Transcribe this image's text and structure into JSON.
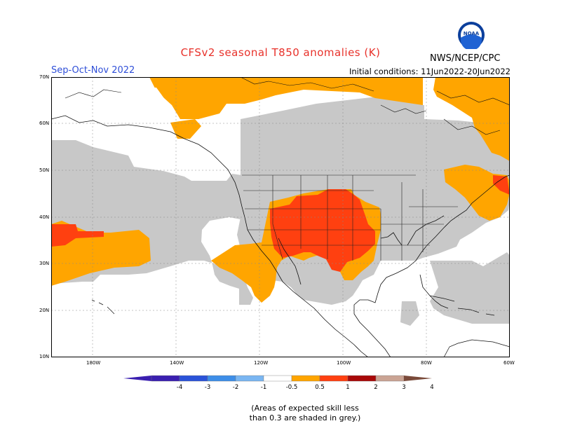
{
  "header": {
    "title": "CFSv2 seasonal T850 anomalies (K)",
    "season": "Sep-Oct-Nov 2022",
    "initial_conditions": "Initial conditions: 11Jun2022-20Jun2022",
    "agency": "NWS/NCEP/CPC",
    "logo_text": "NOAA"
  },
  "axes": {
    "lat_labels": [
      "70N",
      "60N",
      "50N",
      "40N",
      "30N",
      "20N",
      "10N"
    ],
    "lon_labels": [
      "180W",
      "140W",
      "120W",
      "100W",
      "80W",
      "60W"
    ]
  },
  "legend": {
    "labels": [
      "-4",
      "-3",
      "-2",
      "-1",
      "-0.5",
      "0.5",
      "1",
      "2",
      "3",
      "4"
    ],
    "colors": [
      "#3a1fb0",
      "#2a52d8",
      "#3d8ee8",
      "#7ab6f2",
      "#ffffff",
      "#ffa500",
      "#ff4010",
      "#a80808",
      "#caa494",
      "#7a4a3a"
    ]
  },
  "note": {
    "line1": "(Areas of expected skill less",
    "line2": "than 0.3 are shaded in grey.)"
  },
  "map_colors": {
    "low_skill_grey": "#c8c8c8",
    "anomaly_0_5_to_1": "#ffa500",
    "anomaly_1_to_2": "#ff4010"
  }
}
